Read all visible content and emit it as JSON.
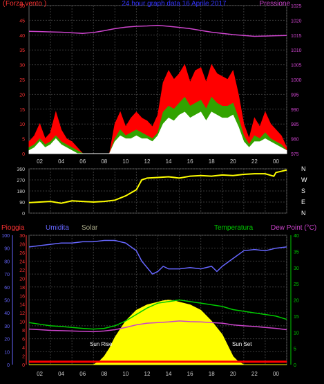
{
  "chart_data": [
    {
      "type": "line",
      "title": "24 hour graph data  16 Aprile 2017",
      "left_label": "Forza vento",
      "left_label_open": "(",
      "left_label_close": ")",
      "right_label": "Pressione",
      "x_ticks": [
        "02",
        "04",
        "06",
        "08",
        "10",
        "12",
        "14",
        "16",
        "18",
        "20",
        "22",
        "00"
      ],
      "ylim_left": [
        0,
        50
      ],
      "left_ticks": [
        0,
        5,
        10,
        15,
        20,
        25,
        30,
        35,
        40,
        45,
        50
      ],
      "ylim_right": [
        975,
        1025
      ],
      "right_ticks": [
        975,
        980,
        985,
        990,
        995,
        1000,
        1005,
        1010,
        1015,
        1020,
        1025
      ],
      "grid": true,
      "colors": {
        "gust": "#ff0000",
        "avg": "#00cc00",
        "speed": "#ffffff",
        "pressure": "#cc44cc",
        "left_axis": "#ff3333",
        "right_axis": "#cc44cc",
        "title": "#3333ff"
      },
      "series": [
        {
          "name": "Pressione",
          "x": [
            0,
            1,
            2,
            3,
            4,
            5,
            6,
            7,
            8,
            9,
            10,
            11,
            12,
            13,
            14,
            15,
            16,
            17,
            18,
            19,
            20,
            21,
            22,
            23,
            24
          ],
          "values": [
            1016.3,
            1016.2,
            1016.1,
            1016,
            1015.8,
            1015.6,
            1015.9,
            1016.5,
            1017.2,
            1017.7,
            1018,
            1018.1,
            1018.3,
            1018,
            1017.6,
            1017.2,
            1016.6,
            1016,
            1015.6,
            1015.2,
            1014.9,
            1014.6,
            1014.7,
            1014.8,
            1014.9
          ]
        },
        {
          "x": [
            0,
            0.5,
            1,
            1.5,
            2,
            2.5,
            3,
            3.5,
            4,
            4.5,
            5,
            5.5,
            6,
            6.5,
            7,
            7.5,
            8,
            8.5,
            9,
            9.5,
            10,
            10.5,
            11,
            11.5,
            12,
            12.5,
            13,
            13.5,
            14,
            14.5,
            15,
            15.5,
            16,
            16.5,
            17,
            17.5,
            18,
            18.5,
            19,
            19.5,
            20,
            20.5,
            21,
            21.5,
            22,
            22.5,
            23,
            23.5,
            24
          ],
          "values": [
            4,
            6,
            10,
            5,
            7,
            14,
            8,
            5,
            4,
            2,
            0,
            0,
            0,
            0,
            0,
            0,
            10,
            14,
            9,
            12,
            14,
            12,
            11,
            9,
            13,
            24,
            28,
            25,
            27,
            30,
            24,
            28,
            29,
            24,
            30,
            27,
            26,
            25,
            28,
            20,
            10,
            5,
            12,
            9,
            14,
            10,
            8,
            6,
            2
          ]
        },
        {
          "x": [
            0,
            0.5,
            1,
            1.5,
            2,
            2.5,
            3,
            3.5,
            4,
            4.5,
            5,
            5.5,
            6,
            6.5,
            7,
            7.5,
            8,
            8.5,
            9,
            9.5,
            10,
            10.5,
            11,
            11.5,
            12,
            12.5,
            13,
            13.5,
            14,
            14.5,
            15,
            15.5,
            16,
            16.5,
            17,
            17.5,
            18,
            18.5,
            19,
            19.5,
            20,
            20.5,
            21,
            21.5,
            22,
            22.5,
            23,
            23.5,
            24
          ],
          "values": [
            2,
            3,
            5,
            3,
            4,
            6,
            4,
            3,
            2,
            1,
            0,
            0,
            0,
            0,
            0,
            0,
            5,
            8,
            6,
            7,
            8,
            7,
            6,
            5,
            7,
            14,
            16,
            15,
            17,
            19,
            16,
            17,
            18,
            15,
            19,
            17,
            16,
            16,
            17,
            12,
            6,
            3,
            6,
            5,
            7,
            5,
            4,
            3,
            1
          ]
        },
        {
          "x": [
            0,
            0.5,
            1,
            1.5,
            2,
            2.5,
            3,
            3.5,
            4,
            4.5,
            5,
            5.5,
            6,
            6.5,
            7,
            7.5,
            8,
            8.5,
            9,
            9.5,
            10,
            10.5,
            11,
            11.5,
            12,
            12.5,
            13,
            13.5,
            14,
            14.5,
            15,
            15.5,
            16,
            16.5,
            17,
            17.5,
            18,
            18.5,
            19,
            19.5,
            20,
            20.5,
            21,
            21.5,
            22,
            22.5,
            23,
            23.5,
            24
          ],
          "values": [
            1,
            2,
            4,
            2,
            3,
            5,
            3,
            2,
            1,
            0,
            0,
            0,
            0,
            0,
            0,
            0,
            4,
            6,
            5,
            5,
            6,
            5,
            5,
            4,
            6,
            10,
            12,
            11,
            13,
            14,
            12,
            13,
            14,
            11,
            14,
            13,
            12,
            12,
            13,
            9,
            4,
            2,
            4,
            4,
            5,
            4,
            3,
            2,
            1
          ]
        }
      ]
    },
    {
      "type": "scatter",
      "title": "",
      "x_ticks": [
        "02",
        "04",
        "06",
        "08",
        "10",
        "12",
        "14",
        "16",
        "18",
        "20",
        "22",
        "00"
      ],
      "ylim": [
        0,
        360
      ],
      "y_ticks": [
        0,
        90,
        180,
        270,
        360
      ],
      "right_labels": [
        "N",
        "W",
        "S",
        "E",
        "N"
      ],
      "color": "#ffff00",
      "series": [
        {
          "x": [
            0,
            1,
            2,
            3,
            4,
            5,
            6,
            7,
            8,
            9,
            10,
            10.5,
            11,
            12,
            13,
            14,
            15,
            16,
            17,
            18,
            19,
            20,
            21,
            22,
            22.8,
            23,
            23.5,
            24
          ],
          "values": [
            85,
            90,
            95,
            80,
            100,
            95,
            90,
            95,
            105,
            140,
            190,
            270,
            285,
            290,
            295,
            285,
            300,
            305,
            300,
            310,
            305,
            315,
            320,
            320,
            300,
            330,
            340,
            350
          ]
        }
      ]
    },
    {
      "type": "line",
      "top_labels": {
        "rain": "Pioggia",
        "humidity": "Umidita",
        "solar": "Solar",
        "temperature": "Temperatura",
        "dew_point": "Dew Point (°C)"
      },
      "annotations": {
        "sunrise": "Sun Rise",
        "sunset": "Sun Set"
      },
      "x_ticks": [
        "02",
        "04",
        "06",
        "08",
        "10",
        "12",
        "14",
        "16",
        "18",
        "20",
        "22",
        "00"
      ],
      "rain_ticks": [
        0,
        2,
        4,
        6,
        8,
        10,
        12,
        14,
        16,
        18,
        20,
        22,
        24,
        26,
        28,
        30
      ],
      "humidity_ticks": [
        0,
        10,
        20,
        30,
        40,
        50,
        60,
        70,
        80,
        90,
        100
      ],
      "temp_ticks": [
        0,
        5,
        10,
        15,
        20,
        25,
        30,
        35,
        40
      ],
      "colors": {
        "rain": "#ff3333",
        "humidity": "#6666ff",
        "solar": "#ffff00",
        "temperature": "#00cc00",
        "dew_point": "#cc44cc",
        "rain_bar": "#ff0000",
        "solar_label": "#aaaa88",
        "right_axis": "#00cc00"
      },
      "series": [
        {
          "name": "Umidita",
          "x": [
            0,
            1,
            2,
            3,
            4,
            5,
            6,
            7,
            8,
            9,
            10,
            10.5,
            11,
            11.5,
            12,
            12.5,
            13,
            14,
            15,
            16,
            17,
            17.5,
            18,
            19,
            20,
            21,
            22,
            23,
            24
          ],
          "values": [
            91,
            92,
            93,
            94,
            94,
            95,
            95,
            96,
            96,
            94,
            88,
            80,
            75,
            70,
            72,
            76,
            74,
            74,
            75,
            74,
            76,
            72,
            76,
            82,
            88,
            89,
            88,
            90,
            91
          ]
        },
        {
          "name": "Temperatura",
          "x": [
            0,
            1,
            2,
            3,
            4,
            5,
            6,
            7,
            8,
            9,
            10,
            11,
            12,
            13,
            14,
            15,
            16,
            17,
            18,
            19,
            20,
            21,
            22,
            23,
            24
          ],
          "values": [
            13,
            12.5,
            12,
            11.8,
            11.5,
            11.2,
            11,
            11.2,
            12,
            13.5,
            15.5,
            17.5,
            19,
            19.5,
            20,
            19.5,
            19,
            18.5,
            18,
            17,
            16.5,
            16,
            15.5,
            15,
            14
          ]
        },
        {
          "name": "Dew Point (°C)",
          "x": [
            0,
            1,
            2,
            3,
            4,
            5,
            6,
            7,
            8,
            9,
            10,
            11,
            12,
            13,
            14,
            15,
            16,
            17,
            18,
            19,
            20,
            21,
            22,
            23,
            24
          ],
          "values": [
            11,
            10.8,
            10.6,
            10.5,
            10.4,
            10.3,
            10.2,
            10.4,
            10.8,
            11.5,
            12.3,
            12.8,
            13,
            13.2,
            13.5,
            13.3,
            13.2,
            13,
            12.8,
            12.3,
            12,
            11.8,
            11.5,
            11.2,
            10.8
          ]
        },
        {
          "name": "Solar",
          "x": [
            0,
            5,
            6,
            6.5,
            7,
            7.5,
            8,
            9,
            10,
            11,
            12,
            12.5,
            13,
            13.5,
            14,
            15,
            16,
            17,
            18,
            18.5,
            19,
            19.5,
            20,
            24
          ],
          "values": [
            0,
            0,
            0,
            2,
            6,
            12,
            20,
            32,
            40,
            44,
            46,
            47,
            47.5,
            47,
            46,
            44,
            40,
            32,
            22,
            14,
            6,
            2,
            0,
            0
          ]
        },
        {
          "name": "Pioggia",
          "x": [
            0,
            24
          ],
          "values": [
            0.6,
            0.6
          ]
        }
      ]
    }
  ]
}
